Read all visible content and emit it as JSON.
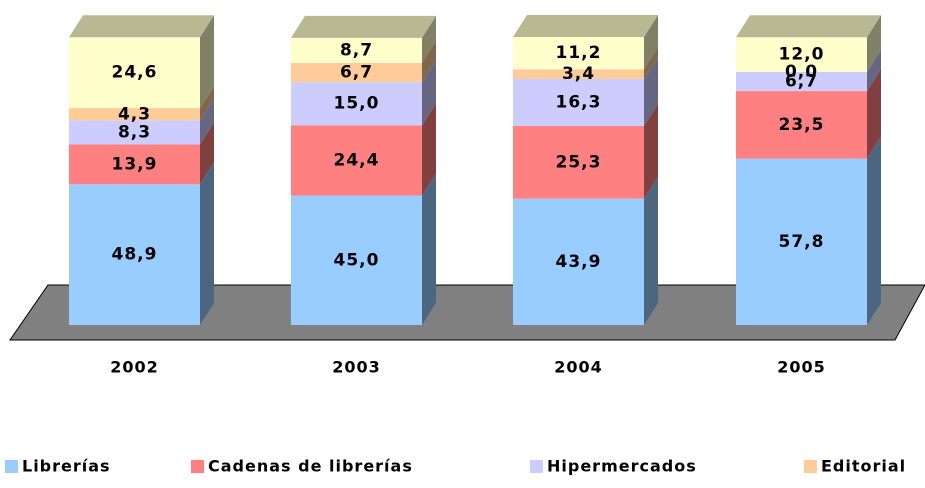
{
  "chart_data": {
    "type": "bar",
    "categories": [
      "2002",
      "2003",
      "2004",
      "2005"
    ],
    "series": [
      {
        "name": "Librerías",
        "color": "#99ccff",
        "values": [
          48.9,
          45.0,
          43.9,
          57.8
        ],
        "value_labels": [
          "48,9",
          "45,0",
          "43,9",
          "57,8"
        ]
      },
      {
        "name": "Cadenas de librerías",
        "color": "#ff8080",
        "values": [
          13.9,
          24.4,
          25.3,
          23.5
        ],
        "value_labels": [
          "13,9",
          "24,4",
          "25,3",
          "23,5"
        ]
      },
      {
        "name": "Hipermercados",
        "color": "#ccccff",
        "values": [
          8.3,
          15.0,
          16.3,
          6.7
        ],
        "value_labels": [
          "8,3",
          "15,0",
          "16,3",
          "6,7"
        ]
      },
      {
        "name": "Editorial",
        "color": "#ffcc99",
        "values": [
          4.3,
          6.7,
          3.4,
          0.0
        ],
        "value_labels": [
          "4,3",
          "6,7",
          "3,4",
          "0,0"
        ]
      },
      {
        "color": "#ffffcc",
        "values": [
          24.6,
          8.7,
          11.2,
          12.0
        ],
        "value_labels": [
          "24,6",
          "8,7",
          "11,2",
          "12,0"
        ]
      }
    ]
  }
}
